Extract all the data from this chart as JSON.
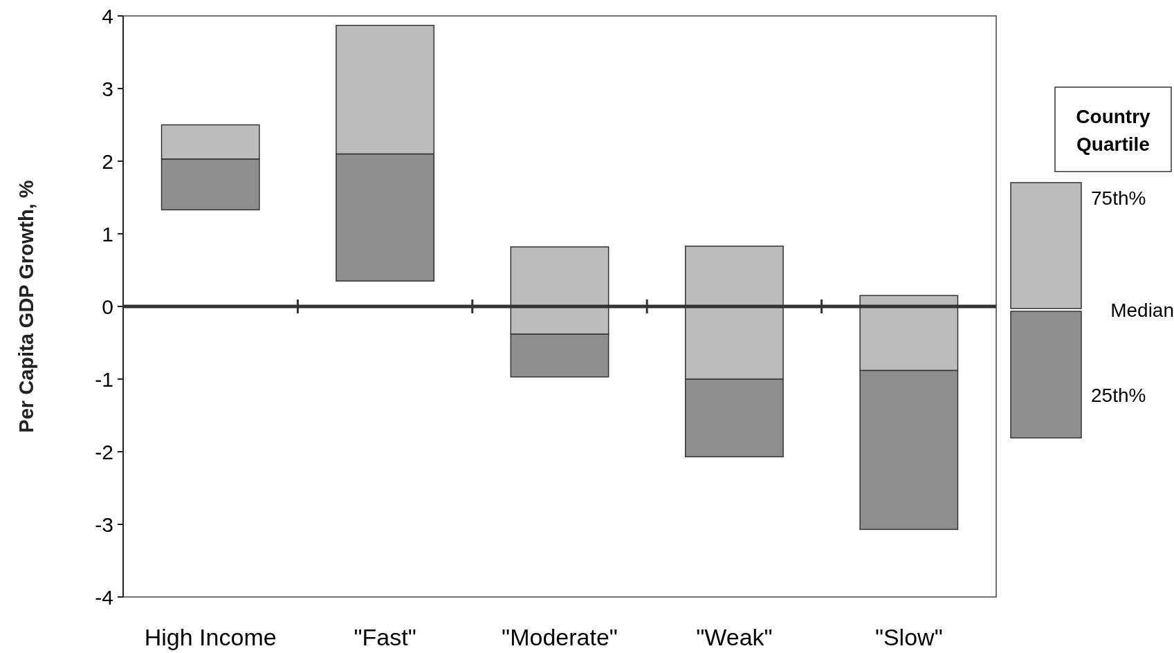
{
  "chart_data": {
    "type": "bar",
    "ylabel": "Per Capita GDP Growth, %",
    "legend_title": "Country Quartile",
    "categories": [
      "High Income",
      "\"Fast\"",
      "\"Moderate\"",
      "\"Weak\"",
      "\"Slow\""
    ],
    "series": [
      {
        "name": "25th%",
        "color": "#8e8e8e",
        "base": [
          1.33,
          0.35,
          -0.97,
          -2.07,
          -3.07
        ],
        "values": [
          0.7,
          1.75,
          0.59,
          1.07,
          2.19
        ]
      },
      {
        "name": "75th%",
        "color": "#bcbcbc",
        "base": [
          2.03,
          2.1,
          -0.38,
          -1.0,
          -0.88
        ],
        "values": [
          0.47,
          1.77,
          1.2,
          1.83,
          1.03
        ]
      }
    ],
    "ylim": [
      -4,
      4
    ],
    "yticks": [
      -4,
      -3,
      -2,
      -1,
      0,
      1,
      2,
      3,
      4
    ],
    "grid": false,
    "legend": "right",
    "ref_lines": [
      {
        "axis": "y",
        "value": 0
      }
    ],
    "annotations": [
      "Median"
    ]
  }
}
